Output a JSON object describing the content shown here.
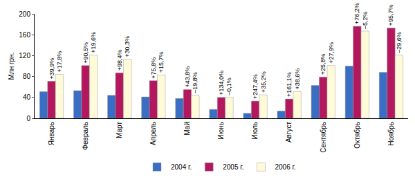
{
  "chart_data": {
    "type": "bar",
    "y_label": "Млн грн.",
    "categories": [
      "Январь",
      "Февраль",
      "Март",
      "Апрель",
      "Май",
      "Июнь",
      "Июль",
      "Август",
      "Сентябрь",
      "Октябрь",
      "Ноябрь"
    ],
    "series": [
      {
        "name": "2004 г.",
        "color": "#3a6ec4",
        "values": [
          51,
          53,
          44,
          41,
          38,
          17,
          9.5,
          14,
          63,
          100,
          88
        ]
      },
      {
        "name": "2005 г.",
        "color": "#b3185f",
        "values": [
          71,
          101,
          87,
          72,
          55,
          40,
          33,
          37,
          79,
          176,
          173
        ],
        "annotations": [
          "+39,9%",
          "+90,5%",
          "+98,4%",
          "+75,8%",
          "+43,8%",
          "+134,0%",
          "+247,4%",
          "+161,1%",
          "+25,8%",
          "+76,2%",
          "+95,7%"
        ]
      },
      {
        "name": "2006 г.",
        "color": "#fffbd8",
        "values": [
          84,
          121,
          113,
          83,
          44,
          40,
          45,
          51,
          101,
          167,
          121
        ],
        "annotations": [
          "+17,8%",
          "+19,6%",
          "+30,3%",
          "+15,7%",
          "–19,8%",
          "–0,1%",
          "+35,2%",
          "+38,6%",
          "+27,9%",
          "–5,2%",
          "–29,6%"
        ]
      }
    ],
    "ylim": [
      0,
      200
    ],
    "yticks": [
      0,
      40,
      80,
      120,
      160,
      200
    ],
    "grid": false,
    "legend": "bottom"
  }
}
